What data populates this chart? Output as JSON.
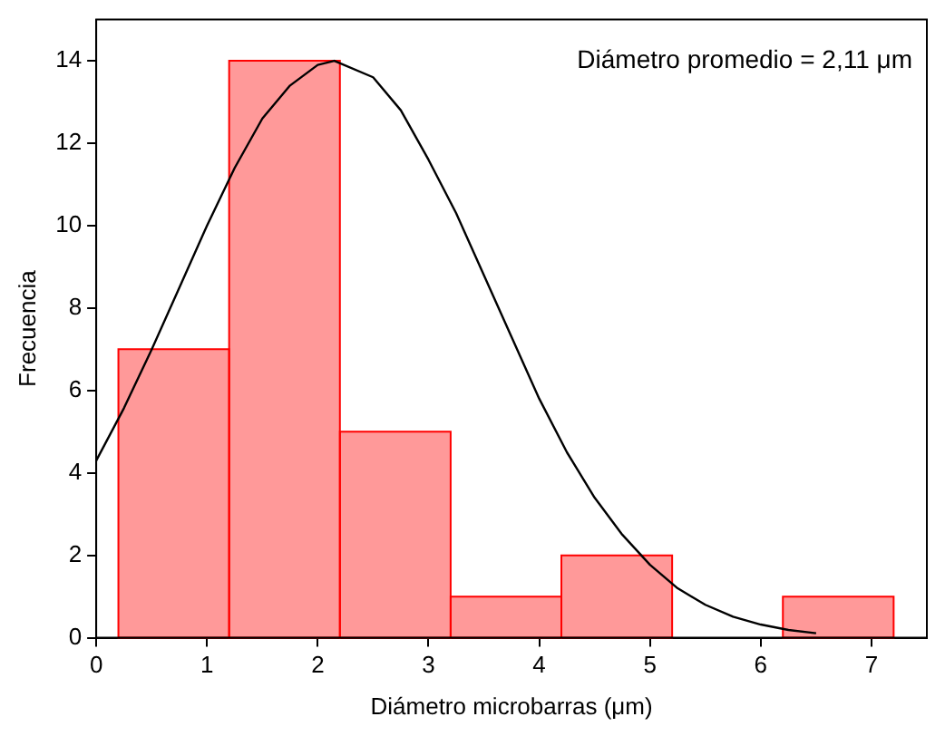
{
  "chart_data": {
    "type": "histogram",
    "xlabel": "Diámetro microbarras (μm)",
    "ylabel": "Frecuencia",
    "annotations": [
      "Diámetro promedio = 2,11 μm"
    ],
    "bins": [
      0.2,
      1.2,
      2.2,
      3.2,
      4.2,
      5.2,
      6.2,
      7.2
    ],
    "values": [
      7,
      14,
      5,
      1,
      2,
      0,
      1
    ],
    "color": "#ff0000",
    "xlim": [
      0,
      7.5
    ],
    "xticks": [
      0,
      1,
      2,
      3,
      4,
      5,
      6,
      7
    ],
    "ylim": [
      0,
      15
    ],
    "yticks": [
      0,
      2,
      4,
      6,
      8,
      10,
      12,
      14
    ],
    "grid": false,
    "legend": false,
    "series": [
      {
        "type": "line",
        "color": "#000000",
        "marker": "none",
        "x": [
          0,
          0.25,
          0.5,
          0.75,
          1,
          1.25,
          1.5,
          1.75,
          2,
          2.15,
          2.5,
          2.75,
          3,
          3.25,
          3.5,
          3.75,
          4,
          4.25,
          4.5,
          4.75,
          5,
          5.25,
          5.5,
          5.75,
          6,
          6.25,
          6.5
        ],
        "values": [
          4.3,
          5.57,
          6.99,
          8.49,
          10,
          11.4,
          12.6,
          13.4,
          13.9,
          14,
          13.6,
          12.8,
          11.6,
          10.3,
          8.8,
          7.3,
          5.8,
          4.5,
          3.4,
          2.5,
          1.77,
          1.2,
          0.8,
          0.51,
          0.32,
          0.19,
          0.11
        ]
      }
    ]
  }
}
